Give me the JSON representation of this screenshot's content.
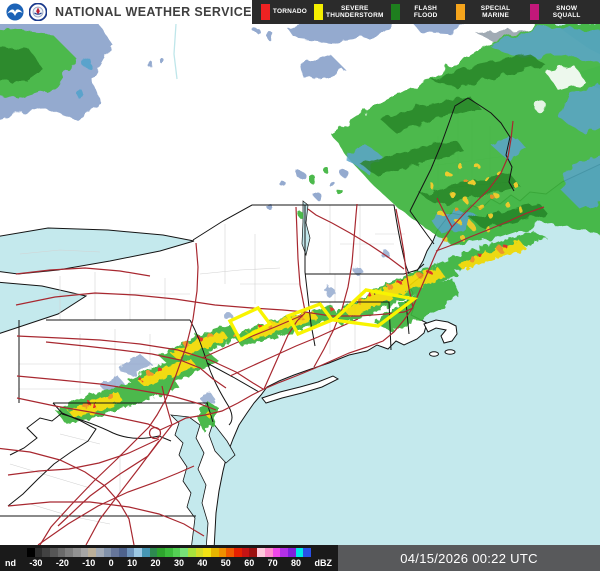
{
  "header": {
    "agency_name": "NATIONAL WEATHER SERVICE",
    "logos": [
      "noaa-logo",
      "commerce-seal"
    ],
    "warning_legend": [
      {
        "label": "TORNADO",
        "color": "#ee2222"
      },
      {
        "label": "SEVERE THUNDERSTORM",
        "color": "#f4ee00"
      },
      {
        "label": "FLASH FLOOD",
        "color": "#1e7e1e"
      },
      {
        "label": "SPECIAL MARINE",
        "color": "#f5a41c"
      },
      {
        "label": "SNOW SQUALL",
        "color": "#c2187a"
      }
    ]
  },
  "map": {
    "region": "Northeastern United States composite reflectivity radar",
    "colors": {
      "water": "#c4e9ed",
      "land": "#ffffff",
      "county_line": "#d2d2d2",
      "state_border": "#141414",
      "highway": "#a82830",
      "radar_light_blue": "#8ba3cb",
      "radar_teal": "#4e9cc8",
      "radar_green": "#3cb43c",
      "radar_dark_green": "#157815",
      "radar_yellow": "#f0d800",
      "radar_orange": "#ef8f1b",
      "radar_red": "#e3241b",
      "warning_polygon": "#f8f400"
    }
  },
  "scale_bar": {
    "tick_labels": [
      "nd",
      "-30",
      "-20",
      "-10",
      "0",
      "10",
      "20",
      "30",
      "40",
      "50",
      "60",
      "70",
      "80",
      "dBZ"
    ],
    "colors": [
      "#000000",
      "#2e2e2e",
      "#424242",
      "#565656",
      "#6a6a6a",
      "#7e7e7e",
      "#929292",
      "#a6a6a6",
      "#bcb09a",
      "#a2aab6",
      "#8292aa",
      "#66769a",
      "#4e628c",
      "#6e94bc",
      "#9cc8e4",
      "#4696b4",
      "#2e8a50",
      "#2ea42e",
      "#3cbc3c",
      "#54d054",
      "#78e278",
      "#a8e23c",
      "#d4dc28",
      "#f2e214",
      "#e6b400",
      "#f09000",
      "#f05a00",
      "#e62000",
      "#c41414",
      "#9c1010",
      "#ffc8dc",
      "#ff8ccc",
      "#f048e8",
      "#b430e8",
      "#8020dc",
      "#00e8e8",
      "#2850e8"
    ]
  },
  "status": {
    "timestamp": "04/15/2026 00:22 UTC"
  }
}
